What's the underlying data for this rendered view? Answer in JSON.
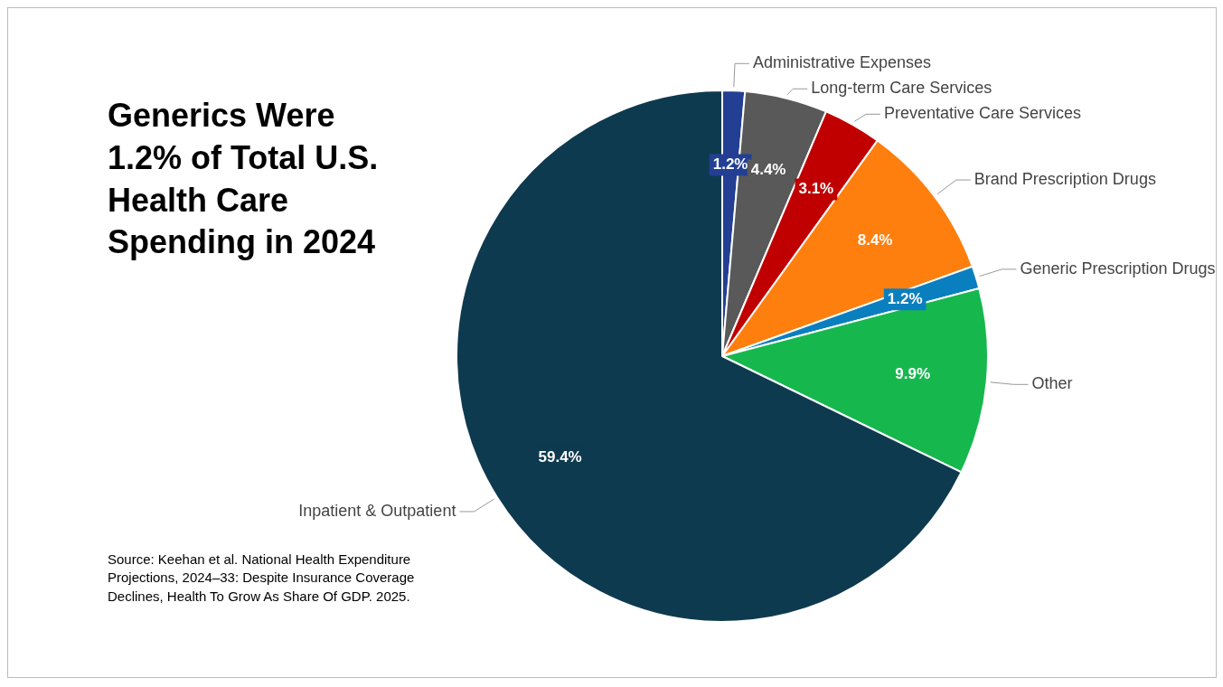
{
  "chart_data": {
    "type": "pie",
    "title": "Generics Were 1.2% of Total U.S. Health Care Spending in 2024",
    "categories": [
      "Administrative Expenses",
      "Long-term Care Services",
      "Preventative Care Services",
      "Brand Prescription Drugs",
      "Generic Prescription Drugs",
      "Other",
      "Inpatient & Outpatient"
    ],
    "values": [
      1.2,
      4.4,
      3.1,
      8.4,
      1.2,
      9.9,
      59.4
    ],
    "colors": [
      "#233f94",
      "#595959",
      "#c00000",
      "#ff7f0e",
      "#0a7fc0",
      "#16b84e",
      "#0e3a4f"
    ],
    "value_labels": [
      "1.2%",
      "4.4%",
      "3.1%",
      "8.4%",
      "1.2%",
      "9.9%",
      "59.4%"
    ],
    "legend": false,
    "annotations": [
      "Source: Keehan et al. National Health Expenditure Projections, 2024–33: Despite Insurance Coverage Declines, Health To Grow As Share Of GDP. 2025."
    ]
  }
}
